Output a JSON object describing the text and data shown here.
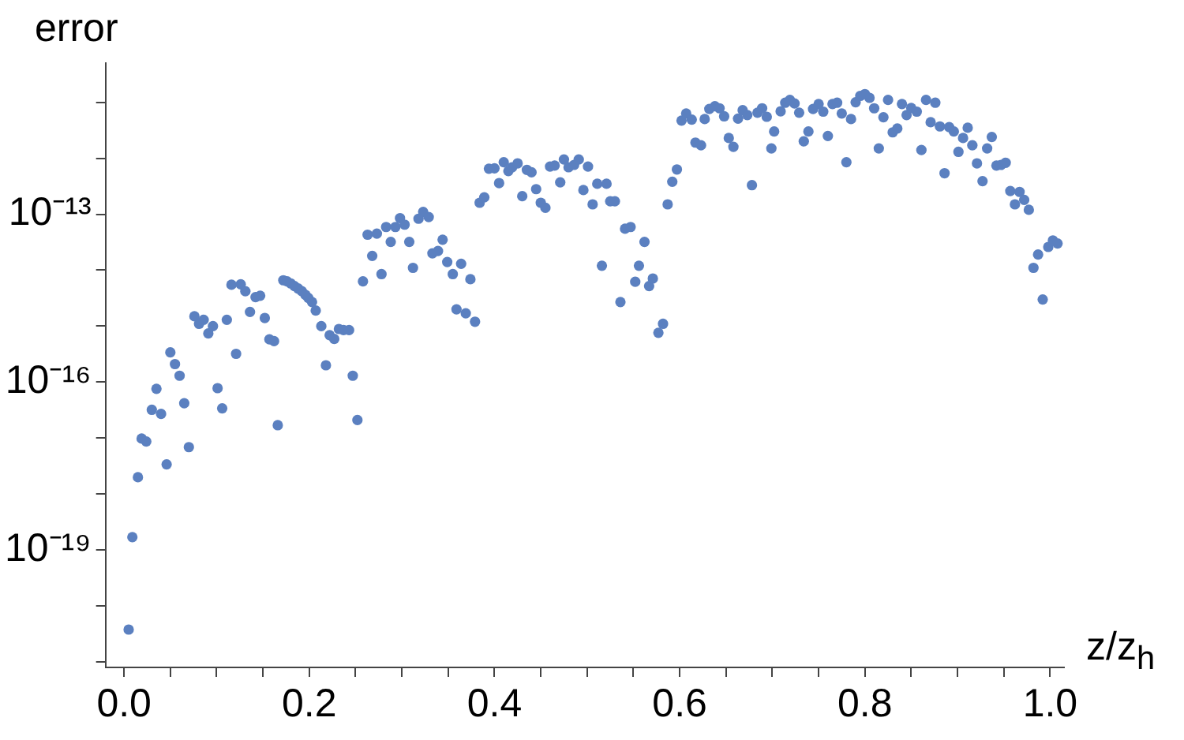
{
  "chart_data": {
    "type": "scatter",
    "xlabel": "z/z$_{h}$",
    "ylabel": "error",
    "log": "y",
    "grid": false,
    "legend": false,
    "marker": "circle",
    "xlim": [
      -0.02,
      1.015
    ],
    "ylim": [
      8e-22,
      5e-11
    ],
    "xticks": [
      {
        "value": 0,
        "label": "0.0"
      },
      {
        "value": 0.05,
        "label": null
      },
      {
        "value": 0.1,
        "label": null
      },
      {
        "value": 0.15,
        "label": null
      },
      {
        "value": 0.2,
        "label": "0.2"
      },
      {
        "value": 0.25,
        "label": null
      },
      {
        "value": 0.3,
        "label": null
      },
      {
        "value": 0.35,
        "label": null
      },
      {
        "value": 0.4,
        "label": "0.4"
      },
      {
        "value": 0.45,
        "label": null
      },
      {
        "value": 0.5,
        "label": null
      },
      {
        "value": 0.55,
        "label": null
      },
      {
        "value": 0.6,
        "label": "0.6"
      },
      {
        "value": 0.65,
        "label": null
      },
      {
        "value": 0.7,
        "label": null
      },
      {
        "value": 0.75,
        "label": null
      },
      {
        "value": 0.8,
        "label": "0.8"
      },
      {
        "value": 0.85,
        "label": null
      },
      {
        "value": 0.9,
        "label": null
      },
      {
        "value": 0.95,
        "label": null
      },
      {
        "value": 1,
        "label": "1.0"
      }
    ],
    "yticks": [
      {
        "value": 1e-21,
        "label": null
      },
      {
        "value": 1e-20,
        "label": null
      },
      {
        "value": 1e-19,
        "label": "10⁻¹⁹"
      },
      {
        "value": 1e-18,
        "label": null
      },
      {
        "value": 1e-17,
        "label": null
      },
      {
        "value": 1e-16,
        "label": "10⁻¹⁶"
      },
      {
        "value": 1e-15,
        "label": null
      },
      {
        "value": 1e-14,
        "label": null
      },
      {
        "value": 1e-13,
        "label": "10⁻¹³"
      },
      {
        "value": 1e-12,
        "label": null
      },
      {
        "value": 1e-11,
        "label": null
      }
    ],
    "series": [
      {
        "color": "#5b80c0",
        "x": [
          0.005,
          0.009,
          0.015,
          0.019,
          0.024,
          0.03,
          0.035,
          0.04,
          0.046,
          0.05,
          0.055,
          0.06,
          0.065,
          0.07,
          0.076,
          0.081,
          0.086,
          0.091,
          0.096,
          0.101,
          0.106,
          0.111,
          0.116,
          0.121,
          0.126,
          0.131,
          0.136,
          0.142,
          0.147,
          0.152,
          0.157,
          0.162,
          0.166,
          0.172,
          0.176,
          0.18,
          0.184,
          0.188,
          0.192,
          0.196,
          0.199,
          0.203,
          0.207,
          0.213,
          0.218,
          0.222,
          0.227,
          0.232,
          0.237,
          0.243,
          0.247,
          0.252,
          0.258,
          0.263,
          0.268,
          0.273,
          0.278,
          0.283,
          0.288,
          0.293,
          0.298,
          0.303,
          0.308,
          0.312,
          0.318,
          0.323,
          0.329,
          0.333,
          0.339,
          0.344,
          0.349,
          0.355,
          0.359,
          0.364,
          0.369,
          0.374,
          0.379,
          0.384,
          0.389,
          0.394,
          0.4,
          0.405,
          0.41,
          0.415,
          0.419,
          0.425,
          0.43,
          0.435,
          0.44,
          0.445,
          0.45,
          0.455,
          0.46,
          0.465,
          0.471,
          0.475,
          0.48,
          0.486,
          0.491,
          0.496,
          0.501,
          0.506,
          0.511,
          0.516,
          0.521,
          0.525,
          0.53,
          0.536,
          0.541,
          0.547,
          0.552,
          0.556,
          0.562,
          0.567,
          0.571,
          0.577,
          0.582,
          0.587,
          0.592,
          0.597,
          0.602,
          0.607,
          0.613,
          0.617,
          0.623,
          0.627,
          0.632,
          0.638,
          0.643,
          0.648,
          0.653,
          0.658,
          0.663,
          0.668,
          0.673,
          0.678,
          0.684,
          0.689,
          0.694,
          0.699,
          0.702,
          0.709,
          0.714,
          0.719,
          0.724,
          0.729,
          0.734,
          0.739,
          0.744,
          0.75,
          0.755,
          0.76,
          0.765,
          0.77,
          0.775,
          0.78,
          0.785,
          0.79,
          0.795,
          0.8,
          0.805,
          0.81,
          0.815,
          0.82,
          0.825,
          0.83,
          0.835,
          0.84,
          0.845,
          0.85,
          0.856,
          0.861,
          0.866,
          0.871,
          0.876,
          0.881,
          0.886,
          0.891,
          0.896,
          0.901,
          0.906,
          0.911,
          0.916,
          0.921,
          0.927,
          0.932,
          0.937,
          0.942,
          0.947,
          0.952,
          0.957,
          0.962,
          0.967,
          0.972,
          0.977,
          0.982,
          0.987,
          0.992,
          0.998,
          1.003,
          1.008
        ],
        "values": [
          3.8e-21,
          1.7e-19,
          2e-18,
          9.8e-18,
          8.7e-18,
          3.2e-17,
          7.6e-17,
          2.7e-17,
          3.4e-18,
          3.4e-16,
          2.1e-16,
          1.3e-16,
          4.2e-17,
          6.9e-18,
          1.5e-15,
          1.1e-15,
          1.3e-15,
          7.4e-16,
          1e-15,
          7.8e-17,
          3.4e-17,
          1.3e-15,
          5.5e-15,
          3.2e-16,
          5.6e-15,
          4.2e-15,
          1.8e-15,
          3.3e-15,
          3.5e-15,
          1.4e-15,
          5.8e-16,
          5.4e-16,
          1.7e-17,
          6.6e-15,
          6.3e-15,
          5.8e-15,
          5.2e-15,
          4.7e-15,
          4.2e-15,
          3.6e-15,
          3.2e-15,
          2.7e-15,
          1.9e-15,
          1e-15,
          2e-16,
          6.9e-16,
          5.9e-16,
          8.9e-16,
          8.5e-16,
          8.5e-16,
          1.3e-16,
          2.1e-17,
          6.3e-15,
          4.3e-14,
          1.8e-14,
          4.5e-14,
          8.5e-15,
          5.9e-14,
          3.2e-14,
          5.9e-14,
          8.5e-14,
          6.5e-14,
          3.2e-14,
          1.1e-14,
          8.3e-14,
          1.1e-13,
          8.9e-14,
          2e-14,
          2.2e-14,
          3.5e-14,
          1.4e-14,
          8.5e-15,
          2e-15,
          1.3e-14,
          1.7e-15,
          6.9e-15,
          1.2e-15,
          1.6e-13,
          2e-13,
          6.5e-13,
          6.6e-13,
          3.6e-13,
          8.5e-13,
          5.9e-13,
          6.9e-13,
          8.1e-13,
          2.1e-13,
          6.2e-13,
          5.6e-13,
          2.8e-13,
          1.6e-13,
          1.3e-13,
          7.1e-13,
          7.4e-13,
          3.7e-13,
          9.5e-13,
          6.9e-13,
          7.6e-13,
          9.5e-13,
          2.7e-13,
          7.1e-13,
          1.5e-13,
          3.5e-13,
          1.2e-14,
          3.5e-13,
          1.7e-13,
          1.7e-13,
          2.7e-15,
          5.5e-14,
          5.9e-14,
          6.2e-15,
          1.2e-14,
          3.2e-14,
          5.2e-15,
          7.1e-15,
          7.6e-16,
          1.1e-15,
          1.5e-13,
          3.8e-13,
          6.3e-13,
          4.7e-12,
          6.3e-12,
          4.9e-12,
          1.9e-12,
          1.7e-12,
          5e-12,
          7.6e-12,
          8.5e-12,
          7.8e-12,
          5.6e-12,
          2.3e-12,
          1.6e-12,
          5.1e-12,
          7.2e-12,
          5.9e-12,
          3.3e-13,
          6.5e-12,
          7.8e-12,
          5.5e-12,
          1.5e-12,
          3e-12,
          6.9e-12,
          9.8e-12,
          1.1e-11,
          9.5e-12,
          6.5e-12,
          2e-12,
          3e-12,
          7.6e-12,
          9.3e-12,
          6.8e-12,
          2.5e-12,
          9.3e-12,
          9.8e-12,
          6.3e-12,
          8.5e-13,
          5e-12,
          1e-11,
          1.3e-11,
          1.4e-11,
          1.2e-11,
          7.8e-12,
          1.5e-12,
          5.4e-12,
          1.1e-11,
          2.9e-12,
          3.4e-12,
          9.3e-12,
          5.9e-12,
          7.9e-12,
          6.8e-12,
          1.4e-12,
          1.1e-11,
          4.4e-12,
          9.8e-12,
          3.7e-12,
          5.4e-13,
          3.6e-12,
          3e-12,
          1.3e-12,
          2.3e-12,
          3.5e-12,
          1.7e-12,
          8.1e-13,
          3.9e-13,
          1.5e-12,
          2.4e-12,
          7.4e-13,
          7.6e-13,
          8.3e-13,
          2.6e-13,
          1.5e-13,
          2.5e-13,
          1.8e-13,
          1.2e-13,
          1.1e-14,
          1.9e-14,
          3e-15,
          2.6e-14,
          3.4e-14,
          3e-14
        ]
      }
    ]
  }
}
